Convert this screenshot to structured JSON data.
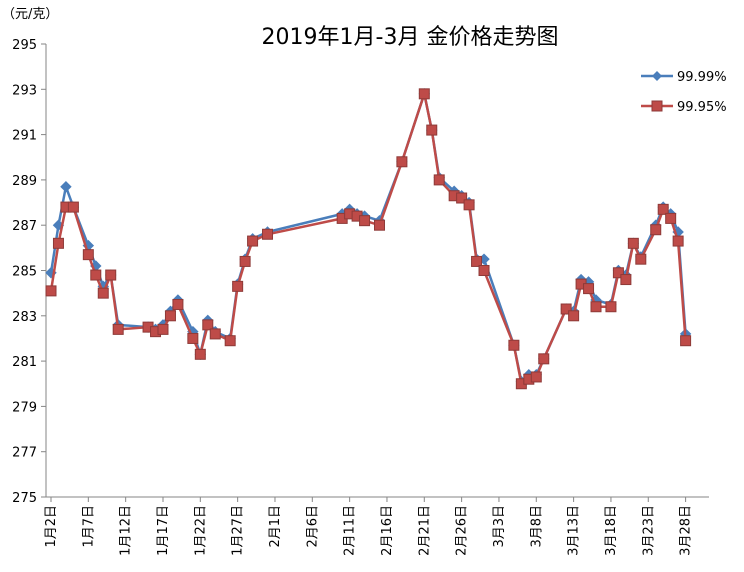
{
  "chart_data": {
    "type": "line",
    "title": "2019年1月-3月 金价格走势图",
    "unit_label": "（元/克）",
    "ylim": [
      275,
      295
    ],
    "yticks": [
      275,
      277,
      279,
      281,
      283,
      285,
      287,
      289,
      291,
      293,
      295
    ],
    "xlim": [
      1,
      89
    ],
    "x_ticks": [
      {
        "x": 1,
        "label": "1月2日"
      },
      {
        "x": 6,
        "label": "1月7日"
      },
      {
        "x": 11,
        "label": "1月12日"
      },
      {
        "x": 16,
        "label": "1月17日"
      },
      {
        "x": 21,
        "label": "1月22日"
      },
      {
        "x": 26,
        "label": "1月27日"
      },
      {
        "x": 31,
        "label": "2月1日"
      },
      {
        "x": 36,
        "label": "2月6日"
      },
      {
        "x": 41,
        "label": "2月11日"
      },
      {
        "x": 46,
        "label": "2月16日"
      },
      {
        "x": 51,
        "label": "2月21日"
      },
      {
        "x": 56,
        "label": "2月26日"
      },
      {
        "x": 61,
        "label": "3月3日"
      },
      {
        "x": 66,
        "label": "3月8日"
      },
      {
        "x": 71,
        "label": "3月13日"
      },
      {
        "x": 76,
        "label": "3月18日"
      },
      {
        "x": 81,
        "label": "3月23日"
      },
      {
        "x": 86,
        "label": "3月28日"
      }
    ],
    "legend_position": "right",
    "grid": false,
    "series": [
      {
        "name": "99.99%",
        "color": "#4a7ebb",
        "marker": "diamond",
        "x": [
          1,
          2,
          3,
          4,
          6,
          7,
          8,
          9,
          10,
          14,
          15,
          16,
          17,
          18,
          20,
          21,
          22,
          23,
          25,
          26,
          27,
          28,
          30,
          40,
          41,
          42,
          43,
          45,
          48,
          51,
          52,
          53,
          55,
          56,
          57,
          58,
          59,
          63,
          64,
          65,
          66,
          67,
          70,
          71,
          72,
          73,
          74,
          76,
          77,
          78,
          79,
          80,
          82,
          83,
          84,
          85,
          86
        ],
        "values": [
          284.9,
          287.0,
          288.7,
          287.8,
          286.1,
          285.2,
          284.3,
          284.8,
          282.6,
          282.5,
          282.4,
          282.6,
          283.2,
          283.7,
          282.3,
          281.3,
          282.8,
          282.3,
          282.0,
          284.4,
          285.5,
          286.4,
          286.7,
          287.5,
          287.7,
          287.5,
          287.4,
          287.2,
          289.8,
          292.8,
          291.2,
          289.1,
          288.5,
          288.3,
          288.0,
          285.5,
          285.5,
          281.7,
          280.1,
          280.4,
          280.4,
          281.1,
          283.3,
          283.2,
          284.6,
          284.5,
          283.7,
          283.5,
          285.0,
          284.8,
          286.2,
          285.6,
          287.0,
          287.8,
          287.5,
          286.7,
          282.2
        ]
      },
      {
        "name": "99.95%",
        "color": "#be4b48",
        "marker": "square",
        "x": [
          1,
          2,
          3,
          4,
          6,
          7,
          8,
          9,
          10,
          14,
          15,
          16,
          17,
          18,
          20,
          21,
          22,
          23,
          25,
          26,
          27,
          28,
          30,
          40,
          41,
          42,
          43,
          45,
          48,
          51,
          52,
          53,
          55,
          56,
          57,
          58,
          59,
          63,
          64,
          65,
          66,
          67,
          70,
          71,
          72,
          73,
          74,
          76,
          77,
          78,
          79,
          80,
          82,
          83,
          84,
          85,
          86
        ],
        "values": [
          284.1,
          286.2,
          287.8,
          287.8,
          285.7,
          284.8,
          284.0,
          284.8,
          282.4,
          282.5,
          282.3,
          282.4,
          283.0,
          283.5,
          282.0,
          281.3,
          282.6,
          282.2,
          281.9,
          284.3,
          285.4,
          286.3,
          286.6,
          287.3,
          287.5,
          287.4,
          287.2,
          287.0,
          289.8,
          292.8,
          291.2,
          289.0,
          288.3,
          288.2,
          287.9,
          285.4,
          285.0,
          281.7,
          280.0,
          280.2,
          280.3,
          281.1,
          283.3,
          283.0,
          284.4,
          284.2,
          283.4,
          283.4,
          284.9,
          284.6,
          286.2,
          285.5,
          286.8,
          287.7,
          287.3,
          286.3,
          281.9
        ]
      }
    ]
  }
}
